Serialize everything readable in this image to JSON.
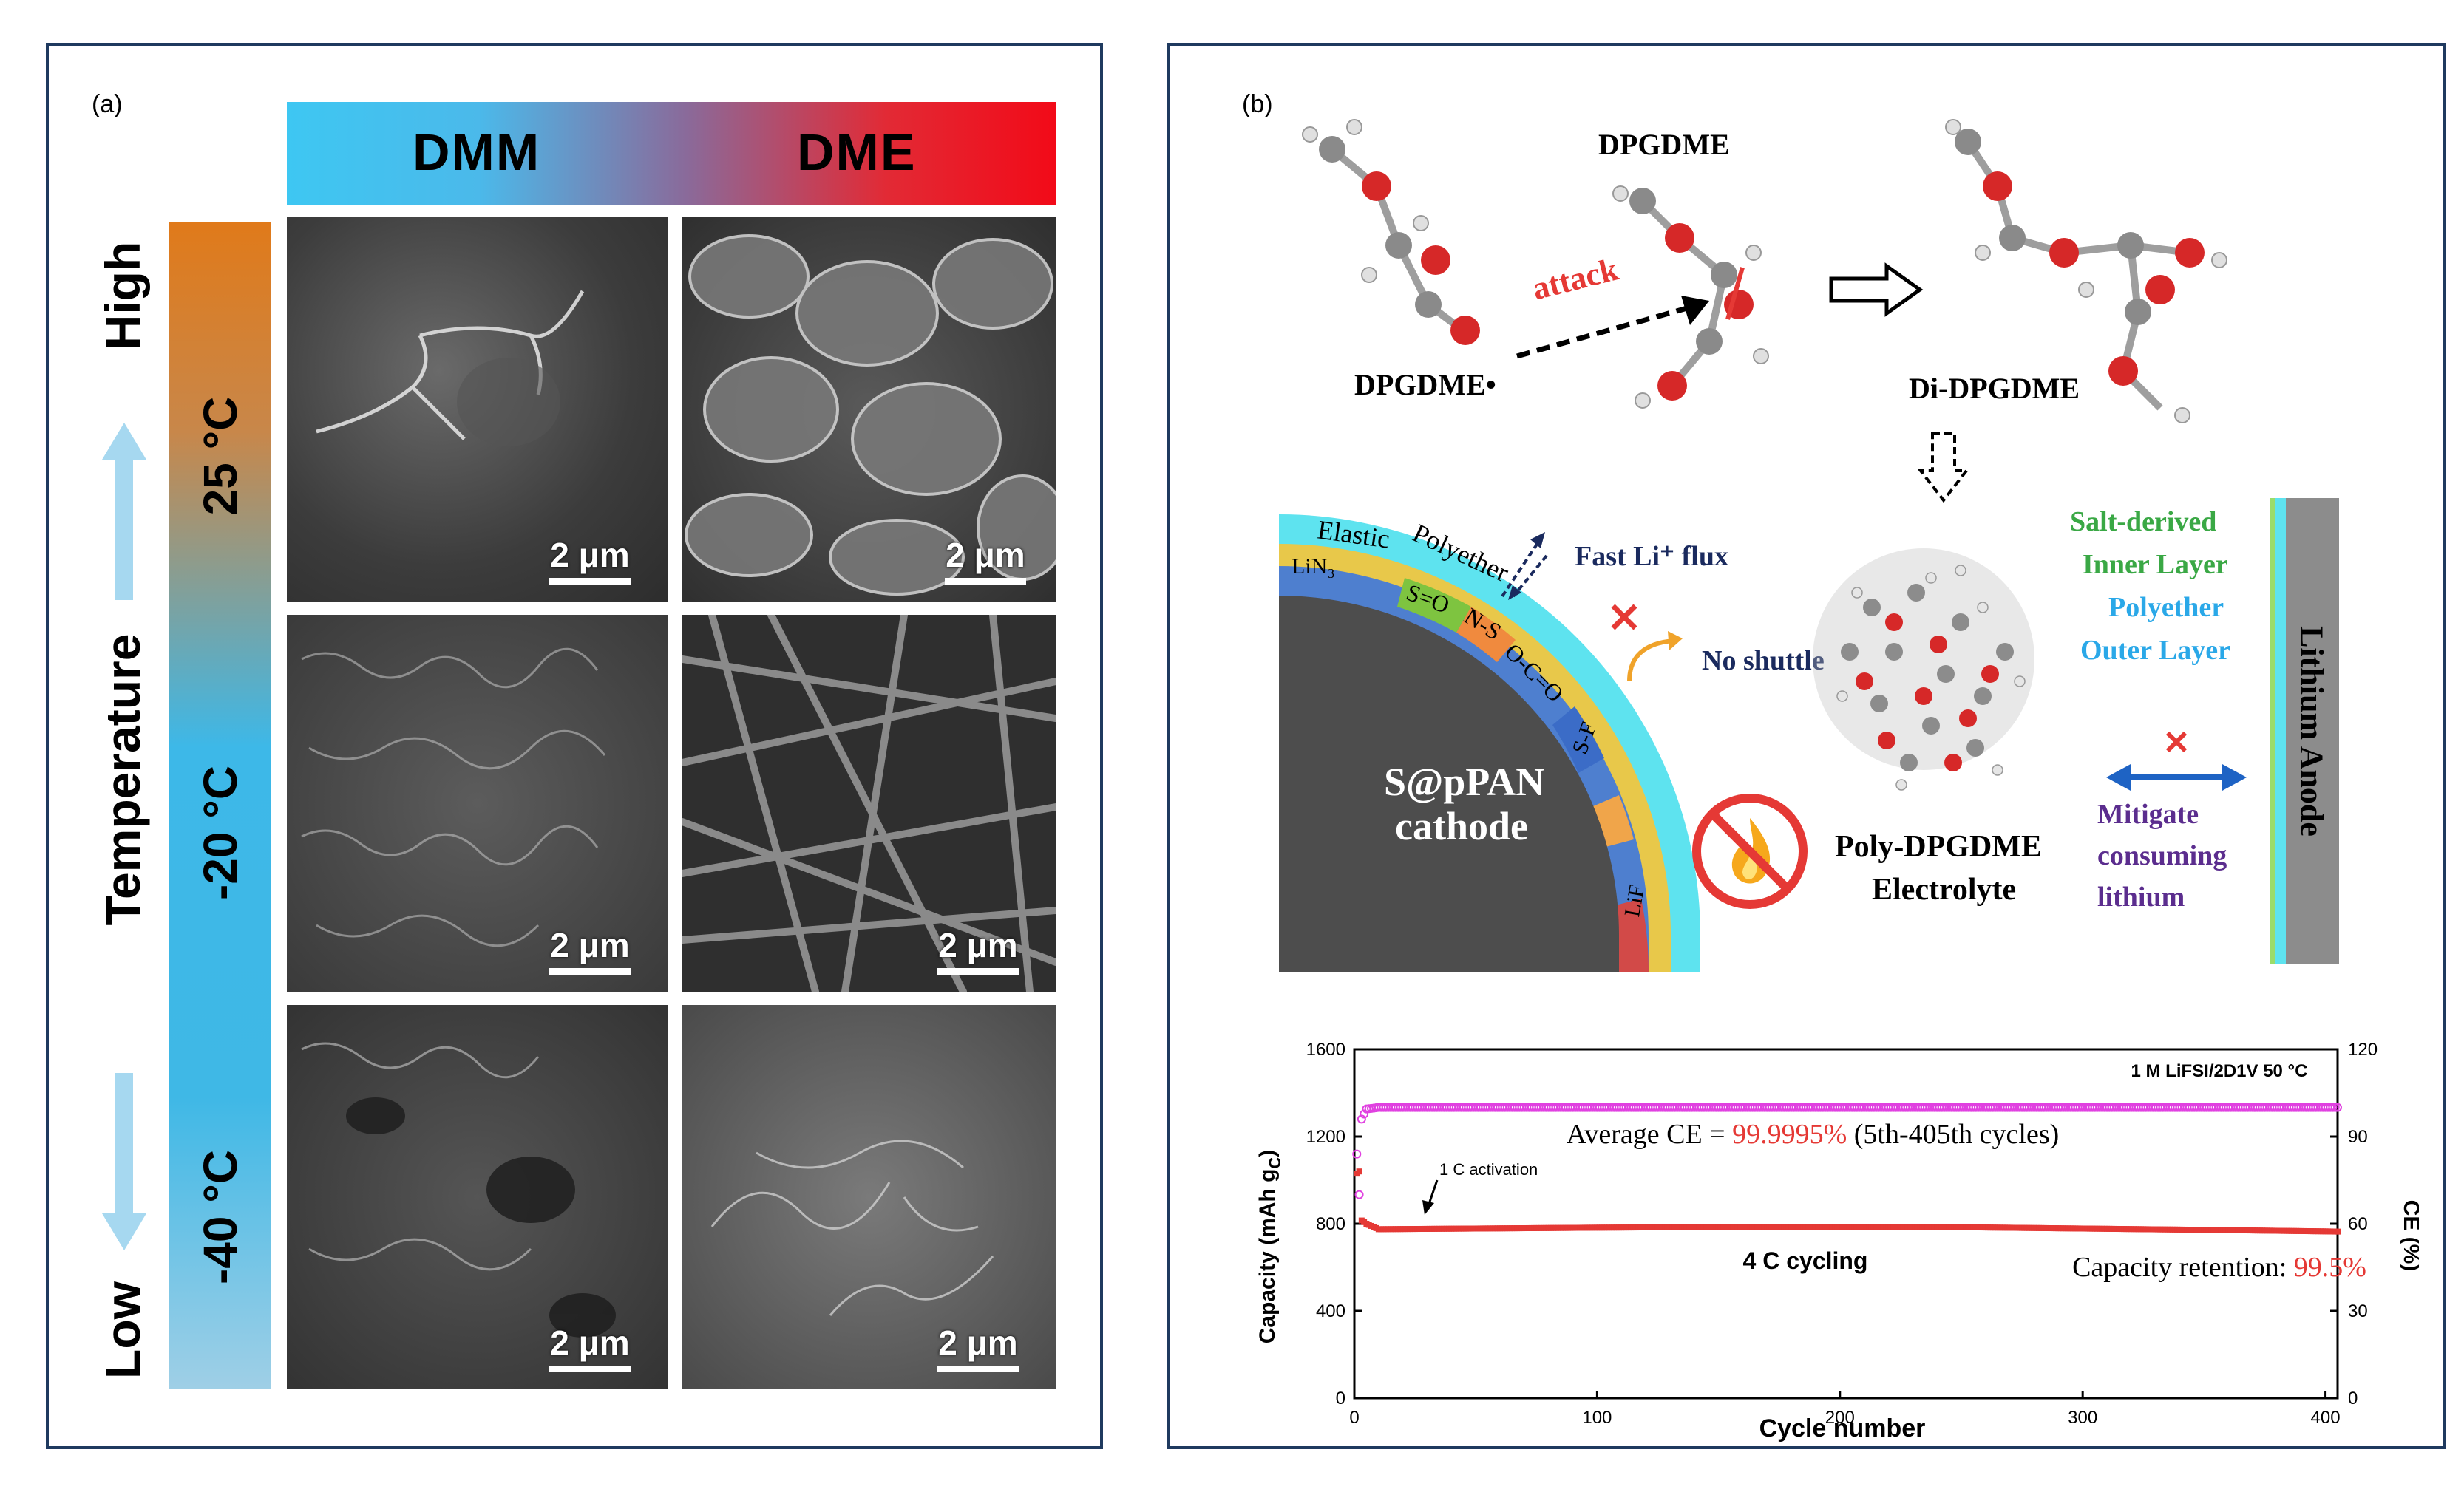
{
  "panel_a": {
    "label": "(a)",
    "header_left": "DMM",
    "header_right": "DME",
    "axis_high": "High",
    "axis_low": "Low",
    "axis_temperature": "Temperature",
    "temp_labels": [
      "25 °C",
      "-20 °C",
      "-40 °C"
    ],
    "scale_label": "2 μm"
  },
  "panel_b": {
    "label": "(b)",
    "dpgdme": "DPGDME",
    "dpgdme_radical": "DPGDME•",
    "attack": "attack",
    "di_dpgdme": "Di-DPGDME",
    "elastic": "Elastic",
    "polyether": "Polyether",
    "lin3": "LiN₃",
    "s_o": "S=O",
    "n_s": "N-S",
    "o_c_o": "O-C=O",
    "s_f": "S-F",
    "lif": "LiF",
    "fast_flux": "Fast Li⁺ flux",
    "no_shuttle": "No shuttle",
    "cathode_line1": "S@pPAN",
    "cathode_line2": "cathode",
    "poly_line1": "Poly-DPGDME",
    "poly_line2": "Electrolyte",
    "salt_line1": "Salt-derived",
    "salt_line2": "Inner Layer",
    "poly_outer1": "Polyether",
    "poly_outer2": "Outer Layer",
    "lithium_anode": "Lithium Anode",
    "mitigate1": "Mitigate",
    "mitigate2": "consuming",
    "mitigate3": "lithium",
    "colors": {
      "red": "#e53935",
      "cyan": "#5ee3ef",
      "green": "#3aa845",
      "blue": "#2aa8e8",
      "purple": "#5b2d8e",
      "navy": "#1a2a5e",
      "cathode": "#4d4d4d"
    }
  },
  "chart_data": {
    "type": "scatter",
    "xlabel": "Cycle number",
    "ylabel_left": "Capacity (mAh g",
    "ylabel_left_sub": "C",
    "ylabel_left_end": ")",
    "ylabel_right": "CE (%)",
    "xlim": [
      0,
      405
    ],
    "ylim_left": [
      0,
      1600
    ],
    "ylim_right": [
      0,
      120
    ],
    "x_ticks": [
      "0",
      "100",
      "200",
      "300",
      "400"
    ],
    "y_left_ticks": [
      "0",
      "400",
      "800",
      "1200",
      "1600"
    ],
    "y_right_ticks": [
      "0",
      "30",
      "60",
      "90",
      "120"
    ],
    "annotation_condition": "1 M LiFSI/2D1V   50 °C",
    "annotation_activation": "1 C activation",
    "annotation_cycling": "4 C cycling",
    "avg_ce_prefix": "Average CE = ",
    "avg_ce_value": "99.9995%",
    "avg_ce_suffix": " (5th-405th cycles)",
    "retention_prefix": "Capacity retention: ",
    "retention_value": "99.5%",
    "series": [
      {
        "name": "Capacity",
        "axis": "left",
        "color": "#e53935",
        "points": [
          [
            1,
            1030
          ],
          [
            2,
            1040
          ],
          [
            3,
            815
          ],
          [
            5,
            800
          ],
          [
            10,
            775
          ],
          [
            50,
            778
          ],
          [
            100,
            782
          ],
          [
            150,
            785
          ],
          [
            200,
            786
          ],
          [
            250,
            784
          ],
          [
            300,
            778
          ],
          [
            350,
            772
          ],
          [
            400,
            765
          ],
          [
            405,
            764
          ]
        ]
      },
      {
        "name": "CE",
        "axis": "right",
        "color": "#e040e0",
        "points": [
          [
            1,
            84
          ],
          [
            2,
            70
          ],
          [
            3,
            96
          ],
          [
            5,
            99.5
          ],
          [
            10,
            100
          ],
          [
            405,
            100
          ]
        ]
      }
    ]
  }
}
